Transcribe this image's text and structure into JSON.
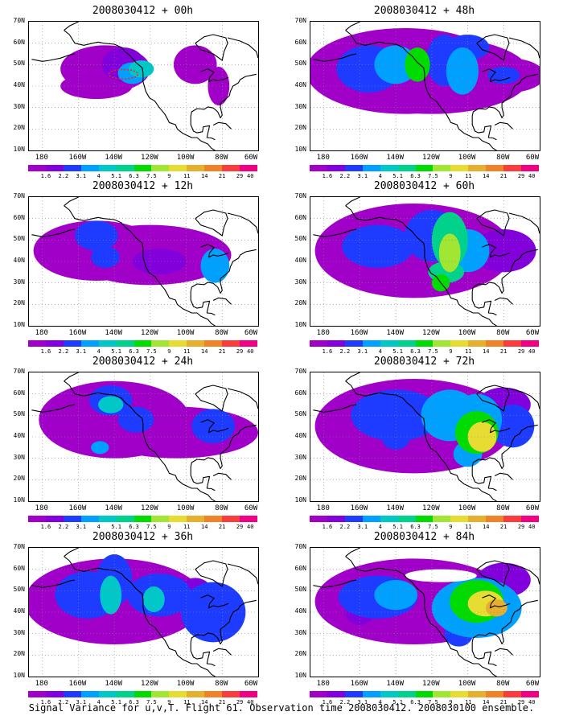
{
  "caption": "Signal Variance for u,v,T. Flight 61. Observation time 2008030412. 2008030100 ensemble.",
  "colorbar": {
    "labels": [
      "1.6",
      "2.2",
      "3.1",
      "4",
      "5.1",
      "6.3",
      "7.5",
      "9",
      "11",
      "14",
      "21",
      "29",
      "40"
    ],
    "colors": [
      "#a000c8",
      "#8200dc",
      "#1e3cff",
      "#00a0ff",
      "#00c8c8",
      "#00d28c",
      "#00dc00",
      "#a0e632",
      "#e6dc32",
      "#e6af2d",
      "#f08228",
      "#fa3c3c",
      "#f00082"
    ]
  },
  "axes": {
    "y_labels": [
      "70N",
      "60N",
      "50N",
      "40N",
      "30N",
      "20N",
      "10N"
    ],
    "x_labels": [
      "180",
      "160W",
      "140W",
      "120W",
      "100W",
      "80W",
      "60W"
    ]
  },
  "panels": [
    {
      "title": "2008030412 + 00h",
      "forecast_hour": 0
    },
    {
      "title": "2008030412 + 48h",
      "forecast_hour": 48
    },
    {
      "title": "2008030412 + 12h",
      "forecast_hour": 12
    },
    {
      "title": "2008030412 + 60h",
      "forecast_hour": 60
    },
    {
      "title": "2008030412 + 24h",
      "forecast_hour": 24
    },
    {
      "title": "2008030412 + 72h",
      "forecast_hour": 72
    },
    {
      "title": "2008030412 + 36h",
      "forecast_hour": 36
    },
    {
      "title": "2008030412 + 84h",
      "forecast_hour": 84
    }
  ]
}
